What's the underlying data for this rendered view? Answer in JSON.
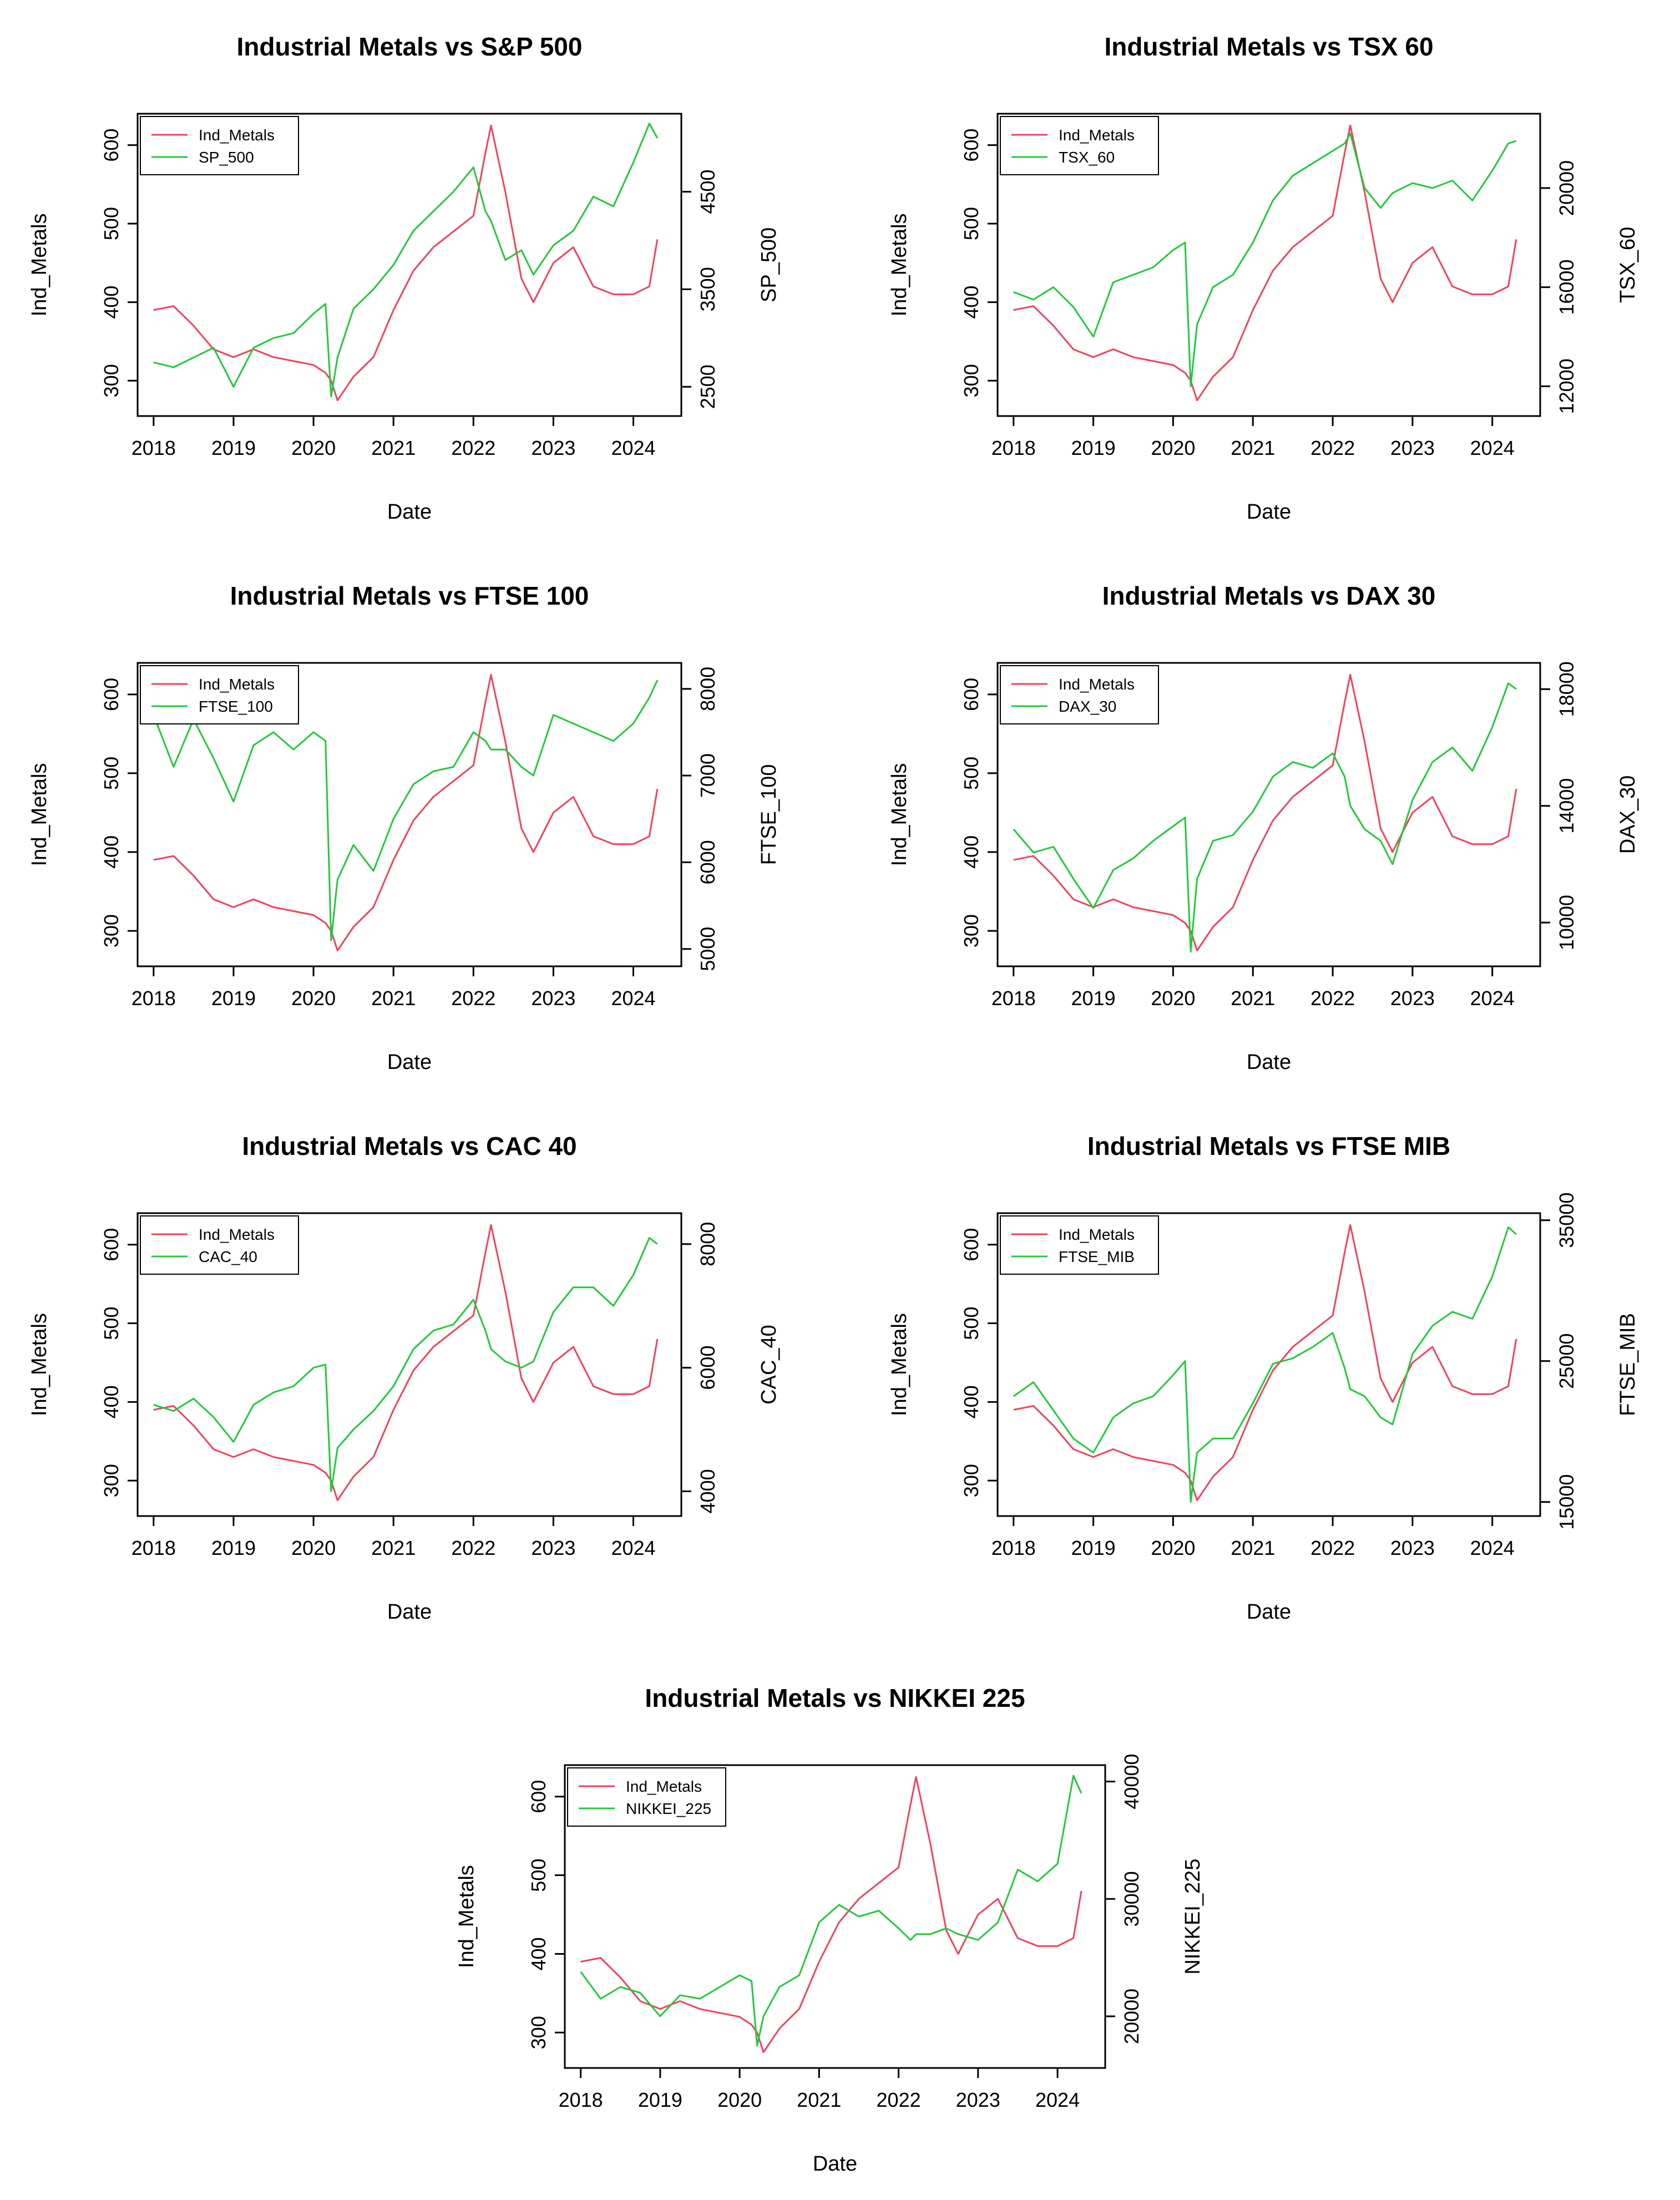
{
  "figure": {
    "series_colors": {
      "Ind_Metals": "#f0425a",
      "index": "#22c83c"
    }
  },
  "chart_data": [
    {
      "type": "line",
      "title": "Industrial Metals vs S&P 500",
      "xlabel": "Date",
      "ylabel_left": "Ind_Metals",
      "ylabel_right": "SP_500",
      "legend": [
        "Ind_Metals",
        "SP_500"
      ],
      "xlim": [
        2017.8,
        2024.6
      ],
      "ylim_left": [
        255,
        640
      ],
      "ylim_right": [
        2200,
        5300
      ],
      "x_ticks": [
        2018,
        2019,
        2020,
        2021,
        2022,
        2023,
        2024
      ],
      "y_left_ticks": [
        300,
        400,
        500,
        600
      ],
      "y_right_ticks": [
        2500,
        3500,
        4500
      ],
      "x": [
        2018.0,
        2018.25,
        2018.5,
        2018.75,
        2019.0,
        2019.25,
        2019.5,
        2019.75,
        2020.0,
        2020.15,
        2020.22,
        2020.3,
        2020.5,
        2020.75,
        2021.0,
        2021.25,
        2021.5,
        2021.75,
        2022.0,
        2022.15,
        2022.22,
        2022.4,
        2022.6,
        2022.75,
        2023.0,
        2023.25,
        2023.5,
        2023.75,
        2024.0,
        2024.2,
        2024.3
      ],
      "series": [
        {
          "name": "Ind_Metals",
          "values": [
            390,
            395,
            370,
            340,
            330,
            340,
            330,
            325,
            320,
            310,
            300,
            275,
            305,
            330,
            390,
            440,
            470,
            490,
            510,
            590,
            625,
            540,
            430,
            400,
            450,
            470,
            420,
            410,
            410,
            420,
            480
          ]
        },
        {
          "name": "SP_500",
          "values": [
            2750,
            2700,
            2800,
            2900,
            2500,
            2900,
            3000,
            3050,
            3250,
            3350,
            2400,
            2800,
            3300,
            3500,
            3750,
            4100,
            4300,
            4500,
            4750,
            4300,
            4200,
            3800,
            3900,
            3650,
            3950,
            4100,
            4450,
            4350,
            4800,
            5200,
            5050
          ]
        }
      ]
    },
    {
      "type": "line",
      "title": "Industrial Metals vs TSX 60",
      "xlabel": "Date",
      "ylabel_left": "Ind_Metals",
      "ylabel_right": "TSX_60",
      "legend": [
        "Ind_Metals",
        "TSX_60"
      ],
      "xlim": [
        2017.8,
        2024.6
      ],
      "ylim_left": [
        255,
        640
      ],
      "ylim_right": [
        10800,
        23000
      ],
      "x_ticks": [
        2018,
        2019,
        2020,
        2021,
        2022,
        2023,
        2024
      ],
      "y_left_ticks": [
        300,
        400,
        500,
        600
      ],
      "y_right_ticks": [
        12000,
        16000,
        20000
      ],
      "x": [
        2018.0,
        2018.25,
        2018.5,
        2018.75,
        2019.0,
        2019.25,
        2019.5,
        2019.75,
        2020.0,
        2020.15,
        2020.22,
        2020.3,
        2020.5,
        2020.75,
        2021.0,
        2021.25,
        2021.5,
        2021.75,
        2022.0,
        2022.15,
        2022.22,
        2022.4,
        2022.6,
        2022.75,
        2023.0,
        2023.25,
        2023.5,
        2023.75,
        2024.0,
        2024.2,
        2024.3
      ],
      "series": [
        {
          "name": "Ind_Metals",
          "values": [
            390,
            395,
            370,
            340,
            330,
            340,
            330,
            325,
            320,
            310,
            300,
            275,
            305,
            330,
            390,
            440,
            470,
            490,
            510,
            590,
            625,
            540,
            430,
            400,
            450,
            470,
            420,
            410,
            410,
            420,
            480
          ]
        },
        {
          "name": "TSX_60",
          "values": [
            15800,
            15500,
            16000,
            15200,
            14000,
            16200,
            16500,
            16800,
            17500,
            17800,
            12000,
            14500,
            16000,
            16500,
            17800,
            19500,
            20500,
            21000,
            21500,
            21800,
            22200,
            20000,
            19200,
            19800,
            20200,
            20000,
            20300,
            19500,
            20700,
            21800,
            21900
          ]
        }
      ]
    },
    {
      "type": "line",
      "title": "Industrial Metals vs FTSE 100",
      "xlabel": "Date",
      "ylabel_left": "Ind_Metals",
      "ylabel_right": "FTSE_100",
      "legend": [
        "Ind_Metals",
        "FTSE_100"
      ],
      "xlim": [
        2017.8,
        2024.6
      ],
      "ylim_left": [
        255,
        640
      ],
      "ylim_right": [
        4800,
        8300
      ],
      "x_ticks": [
        2018,
        2019,
        2020,
        2021,
        2022,
        2023,
        2024
      ],
      "y_left_ticks": [
        300,
        400,
        500,
        600
      ],
      "y_right_ticks": [
        5000,
        6000,
        7000,
        8000
      ],
      "x": [
        2018.0,
        2018.25,
        2018.5,
        2018.75,
        2019.0,
        2019.25,
        2019.5,
        2019.75,
        2020.0,
        2020.15,
        2020.22,
        2020.3,
        2020.5,
        2020.75,
        2021.0,
        2021.25,
        2021.5,
        2021.75,
        2022.0,
        2022.15,
        2022.22,
        2022.4,
        2022.6,
        2022.75,
        2023.0,
        2023.25,
        2023.5,
        2023.75,
        2024.0,
        2024.2,
        2024.3
      ],
      "series": [
        {
          "name": "Ind_Metals",
          "values": [
            390,
            395,
            370,
            340,
            330,
            340,
            330,
            325,
            320,
            310,
            300,
            275,
            305,
            330,
            390,
            440,
            470,
            490,
            510,
            590,
            625,
            540,
            430,
            400,
            450,
            470,
            420,
            410,
            410,
            420,
            480
          ]
        },
        {
          "name": "FTSE_100",
          "values": [
            7700,
            7100,
            7650,
            7200,
            6700,
            7350,
            7500,
            7300,
            7500,
            7400,
            5100,
            5800,
            6200,
            5900,
            6500,
            6900,
            7050,
            7100,
            7500,
            7400,
            7300,
            7300,
            7100,
            7000,
            7700,
            7600,
            7500,
            7400,
            7600,
            7900,
            8100
          ]
        }
      ]
    },
    {
      "type": "line",
      "title": "Industrial Metals vs DAX 30",
      "xlabel": "Date",
      "ylabel_left": "Ind_Metals",
      "ylabel_right": "DAX_30",
      "legend": [
        "Ind_Metals",
        "DAX_30"
      ],
      "xlim": [
        2017.8,
        2024.6
      ],
      "ylim_left": [
        255,
        640
      ],
      "ylim_right": [
        8500,
        18900
      ],
      "x_ticks": [
        2018,
        2019,
        2020,
        2021,
        2022,
        2023,
        2024
      ],
      "y_left_ticks": [
        300,
        400,
        500,
        600
      ],
      "y_right_ticks": [
        10000,
        14000,
        18000
      ],
      "x": [
        2018.0,
        2018.25,
        2018.5,
        2018.75,
        2019.0,
        2019.25,
        2019.5,
        2019.75,
        2020.0,
        2020.15,
        2020.22,
        2020.3,
        2020.5,
        2020.75,
        2021.0,
        2021.25,
        2021.5,
        2021.75,
        2022.0,
        2022.15,
        2022.22,
        2022.4,
        2022.6,
        2022.75,
        2023.0,
        2023.25,
        2023.5,
        2023.75,
        2024.0,
        2024.2,
        2024.3
      ],
      "series": [
        {
          "name": "Ind_Metals",
          "values": [
            390,
            395,
            370,
            340,
            330,
            340,
            330,
            325,
            320,
            310,
            300,
            275,
            305,
            330,
            390,
            440,
            470,
            490,
            510,
            590,
            625,
            540,
            430,
            400,
            450,
            470,
            420,
            410,
            410,
            420,
            480
          ]
        },
        {
          "name": "DAX_30",
          "values": [
            13200,
            12400,
            12600,
            11500,
            10500,
            11800,
            12200,
            12800,
            13300,
            13600,
            9000,
            11500,
            12800,
            13000,
            13800,
            15000,
            15500,
            15300,
            15800,
            15000,
            14000,
            13200,
            12800,
            12000,
            14200,
            15500,
            16000,
            15200,
            16700,
            18200,
            18000
          ]
        }
      ]
    },
    {
      "type": "line",
      "title": "Industrial Metals vs CAC 40",
      "xlabel": "Date",
      "ylabel_left": "Ind_Metals",
      "ylabel_right": "CAC_40",
      "legend": [
        "Ind_Metals",
        "CAC_40"
      ],
      "xlim": [
        2017.8,
        2024.6
      ],
      "ylim_left": [
        255,
        640
      ],
      "ylim_right": [
        3600,
        8500
      ],
      "x_ticks": [
        2018,
        2019,
        2020,
        2021,
        2022,
        2023,
        2024
      ],
      "y_left_ticks": [
        300,
        400,
        500,
        600
      ],
      "y_right_ticks": [
        4000,
        6000,
        8000
      ],
      "x": [
        2018.0,
        2018.25,
        2018.5,
        2018.75,
        2019.0,
        2019.25,
        2019.5,
        2019.75,
        2020.0,
        2020.15,
        2020.22,
        2020.3,
        2020.5,
        2020.75,
        2021.0,
        2021.25,
        2021.5,
        2021.75,
        2022.0,
        2022.15,
        2022.22,
        2022.4,
        2022.6,
        2022.75,
        2023.0,
        2023.25,
        2023.5,
        2023.75,
        2024.0,
        2024.2,
        2024.3
      ],
      "series": [
        {
          "name": "Ind_Metals",
          "values": [
            390,
            395,
            370,
            340,
            330,
            340,
            330,
            325,
            320,
            310,
            300,
            275,
            305,
            330,
            390,
            440,
            470,
            490,
            510,
            590,
            625,
            540,
            430,
            400,
            450,
            470,
            420,
            410,
            410,
            420,
            480
          ]
        },
        {
          "name": "CAC_40",
          "values": [
            5400,
            5300,
            5500,
            5200,
            4800,
            5400,
            5600,
            5700,
            6000,
            6050,
            4000,
            4700,
            5000,
            5300,
            5700,
            6300,
            6600,
            6700,
            7100,
            6600,
            6300,
            6100,
            6000,
            6100,
            6900,
            7300,
            7300,
            7000,
            7500,
            8100,
            8000
          ]
        }
      ]
    },
    {
      "type": "line",
      "title": "Industrial Metals vs FTSE MIB",
      "xlabel": "Date",
      "ylabel_left": "Ind_Metals",
      "ylabel_right": "FTSE_MIB",
      "legend": [
        "Ind_Metals",
        "FTSE_MIB"
      ],
      "xlim": [
        2017.8,
        2024.6
      ],
      "ylim_left": [
        255,
        640
      ],
      "ylim_right": [
        14000,
        35500
      ],
      "x_ticks": [
        2018,
        2019,
        2020,
        2021,
        2022,
        2023,
        2024
      ],
      "y_left_ticks": [
        300,
        400,
        500,
        600
      ],
      "y_right_ticks": [
        15000,
        25000,
        35000
      ],
      "x": [
        2018.0,
        2018.25,
        2018.5,
        2018.75,
        2019.0,
        2019.25,
        2019.5,
        2019.75,
        2020.0,
        2020.15,
        2020.22,
        2020.3,
        2020.5,
        2020.75,
        2021.0,
        2021.25,
        2021.5,
        2021.75,
        2022.0,
        2022.15,
        2022.22,
        2022.4,
        2022.6,
        2022.75,
        2023.0,
        2023.25,
        2023.5,
        2023.75,
        2024.0,
        2024.2,
        2024.3
      ],
      "series": [
        {
          "name": "Ind_Metals",
          "values": [
            390,
            395,
            370,
            340,
            330,
            340,
            330,
            325,
            320,
            310,
            300,
            275,
            305,
            330,
            390,
            440,
            470,
            490,
            510,
            590,
            625,
            540,
            430,
            400,
            450,
            470,
            420,
            410,
            410,
            420,
            480
          ]
        },
        {
          "name": "FTSE_MIB",
          "values": [
            22500,
            23500,
            21500,
            19500,
            18500,
            21000,
            22000,
            22500,
            24000,
            25000,
            15000,
            18500,
            19500,
            19500,
            22000,
            24800,
            25200,
            26000,
            27000,
            24500,
            23000,
            22500,
            21000,
            20500,
            25500,
            27500,
            28500,
            28000,
            31000,
            34500,
            34000
          ]
        }
      ]
    },
    {
      "type": "line",
      "title": "Industrial Metals vs NIKKEI 225",
      "xlabel": "Date",
      "ylabel_left": "Ind_Metals",
      "ylabel_right": "NIKKEI_225",
      "legend": [
        "Ind_Metals",
        "NIKKEI_225"
      ],
      "xlim": [
        2017.8,
        2024.6
      ],
      "ylim_left": [
        255,
        640
      ],
      "ylim_right": [
        15600,
        41400
      ],
      "x_ticks": [
        2018,
        2019,
        2020,
        2021,
        2022,
        2023,
        2024
      ],
      "y_left_ticks": [
        300,
        400,
        500,
        600
      ],
      "y_right_ticks": [
        20000,
        30000,
        40000
      ],
      "x": [
        2018.0,
        2018.25,
        2018.5,
        2018.75,
        2019.0,
        2019.25,
        2019.5,
        2019.75,
        2020.0,
        2020.15,
        2020.22,
        2020.3,
        2020.5,
        2020.75,
        2021.0,
        2021.25,
        2021.5,
        2021.75,
        2022.0,
        2022.15,
        2022.22,
        2022.4,
        2022.6,
        2022.75,
        2023.0,
        2023.25,
        2023.5,
        2023.75,
        2024.0,
        2024.2,
        2024.3
      ],
      "series": [
        {
          "name": "Ind_Metals",
          "values": [
            390,
            395,
            370,
            340,
            330,
            340,
            330,
            325,
            320,
            310,
            300,
            275,
            305,
            330,
            390,
            440,
            470,
            490,
            510,
            590,
            625,
            540,
            430,
            400,
            450,
            470,
            420,
            410,
            410,
            420,
            480
          ]
        },
        {
          "name": "NIKKEI_225",
          "values": [
            23800,
            21500,
            22500,
            22000,
            20000,
            21800,
            21500,
            22500,
            23500,
            23000,
            17500,
            20000,
            22500,
            23500,
            28000,
            29500,
            28500,
            29000,
            27500,
            26500,
            27000,
            27000,
            27500,
            27000,
            26500,
            28000,
            32500,
            31500,
            33000,
            40500,
            39000
          ]
        }
      ]
    }
  ]
}
